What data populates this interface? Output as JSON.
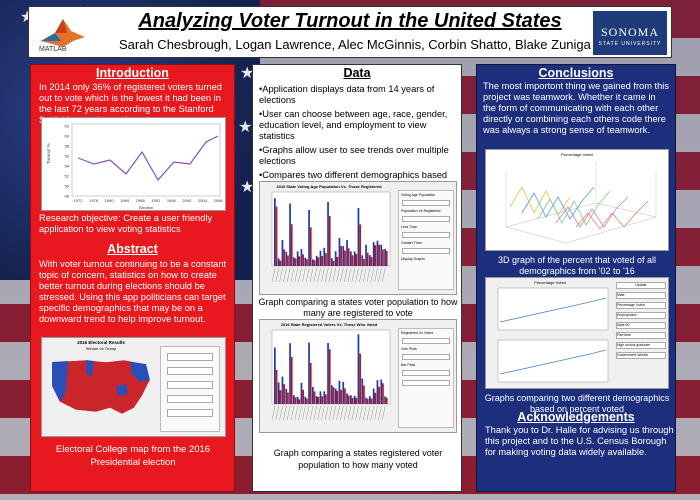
{
  "header": {
    "title": "Analyzing Voter Turnout in the United States",
    "authors": "Sarah Chesbrough, Logan Lawrence, Alec McGinnis, Corbin Shatto, Blake Zuniga",
    "left_logo": "MATLAB",
    "right_logo_name": "SONOMA",
    "right_logo_sub": "STATE UNIVERSITY"
  },
  "introduction": {
    "heading": "Introduction",
    "text": "In 2014 only 36% of registered voters turned out to vote which is the lowest it had been in the last 72 years according to the Stanford Social Innovation review.",
    "objective": "Research objective: Create a user friendly application to view voting statistics"
  },
  "turnout_chart": {
    "ylabel": "Turnout %",
    "xlabel": "Election",
    "y_ticks": [
      "62",
      "60",
      "58",
      "56",
      "54",
      "52",
      "50",
      "48"
    ],
    "x_ticks": [
      "1972",
      "1976",
      "1980",
      "1984",
      "1988",
      "1992",
      "1996",
      "2000",
      "2004",
      "2008"
    ]
  },
  "abstract": {
    "heading": "Abstract",
    "text": "With voter turnout continuing to be a constant topic of concern, statistics on how to create better turnout during elections should be stressed. Using this app politicians can target specific demographics that may be on a downward trend to help improve turnout.",
    "map_title": "2016 Electoral Results",
    "map_subtitle": "Winner vs Trump",
    "map_caption": "Electoral College map from the 2016 Presidential election"
  },
  "data": {
    "heading": "Data",
    "bullets": [
      "Application displays data from 14 years of elections",
      "User can choose between age, race, gender, education level, and employment to view statistics",
      "Graphs allow user to see trends over multiple elections",
      "Compares two different demographics based on user selection"
    ],
    "graph1_title": "2016 State Voting Age Population Vs. Those Registered",
    "graph1_caption": "Graph comparing a states voter population to how many are registered to vote",
    "graph2_title": "2016 State Registered Voters Vs. Those Who Voted",
    "graph2_caption": "Graph comparing a states registered voter population to how many voted",
    "panel_labels": [
      "Voting Age Population",
      "Population Vs Registered",
      "Registered Vs Voted",
      "Less Than",
      "Greater Than",
      "Vote Plots",
      "Display Graphs",
      "Bar Plots"
    ]
  },
  "conclusions": {
    "heading": "Conclusions",
    "text": "The most importont thing we gained from this project was teamwork. Whether it came in the form of communicating with each other directly or combining each others code there was always a strong sense of teamwork.",
    "graph3d_title": "Percentage Voted",
    "graph3d_caption": "3D graph of the percent that voted of all demographics from '02 to '16",
    "compare_title": "Percentage Voted",
    "compare_caption": "Graphs comparing two different demographics based on percent voted",
    "compare_buttons": [
      "Update",
      "Male",
      "Percentage Voted",
      "Employment",
      "Male 80",
      "Part time",
      "High school graduate",
      "Government Worker"
    ]
  },
  "acknowledgements": {
    "heading": "Acknowledgements",
    "text": "Thank you to Dr. Halle for advising us through this project and to the U.S. Census Borough for making voting data widely available."
  },
  "colors": {
    "left_panel": "#e8191e",
    "right_panel": "#1d2f7c",
    "bar_red": "#c0141a",
    "bar_blue": "#1c3aa6"
  }
}
